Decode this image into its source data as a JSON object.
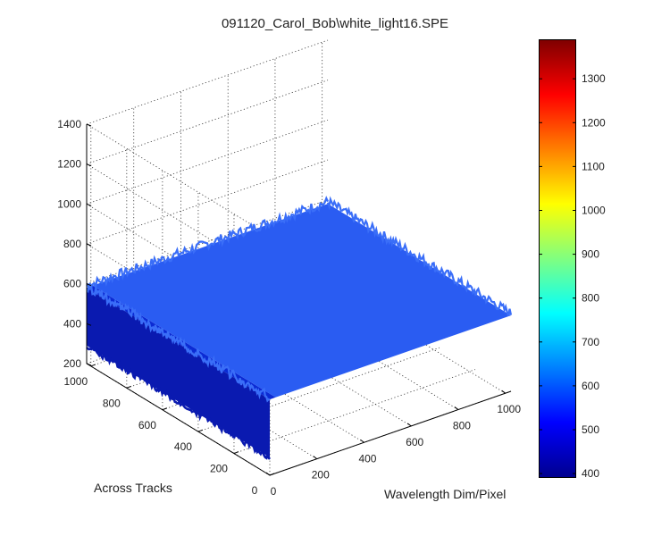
{
  "chart_data": {
    "type": "surface",
    "title": "091120_Carol_Bob\\white_light16.SPE",
    "xlabel": "Wavelength Dim/Pixel",
    "ylabel": "Across Tracks",
    "zlabel": "",
    "xlim": [
      0,
      1024
    ],
    "ylim": [
      0,
      1024
    ],
    "zlim": [
      200,
      1400
    ],
    "x_ticks": [
      0,
      200,
      400,
      600,
      800,
      1000
    ],
    "y_ticks": [
      0,
      200,
      400,
      600,
      800,
      1000
    ],
    "z_ticks": [
      200,
      400,
      600,
      800,
      1000,
      1200,
      1400
    ],
    "grid": true,
    "surface": {
      "plateau_value": 580,
      "edge_value": 410,
      "noise": 25,
      "edge_x_range": [
        0,
        25
      ]
    },
    "colorbar": {
      "min": 390,
      "max": 1390,
      "ticks": [
        400,
        500,
        600,
        700,
        800,
        900,
        1000,
        1100,
        1200,
        1300
      ],
      "colormap": "jet"
    },
    "colors": {
      "surface_top": "#2a5cf2",
      "surface_top_light": "#3a6ef8",
      "surface_side": "#0b2bd4",
      "surface_side_dark": "#0a1ab0"
    }
  }
}
